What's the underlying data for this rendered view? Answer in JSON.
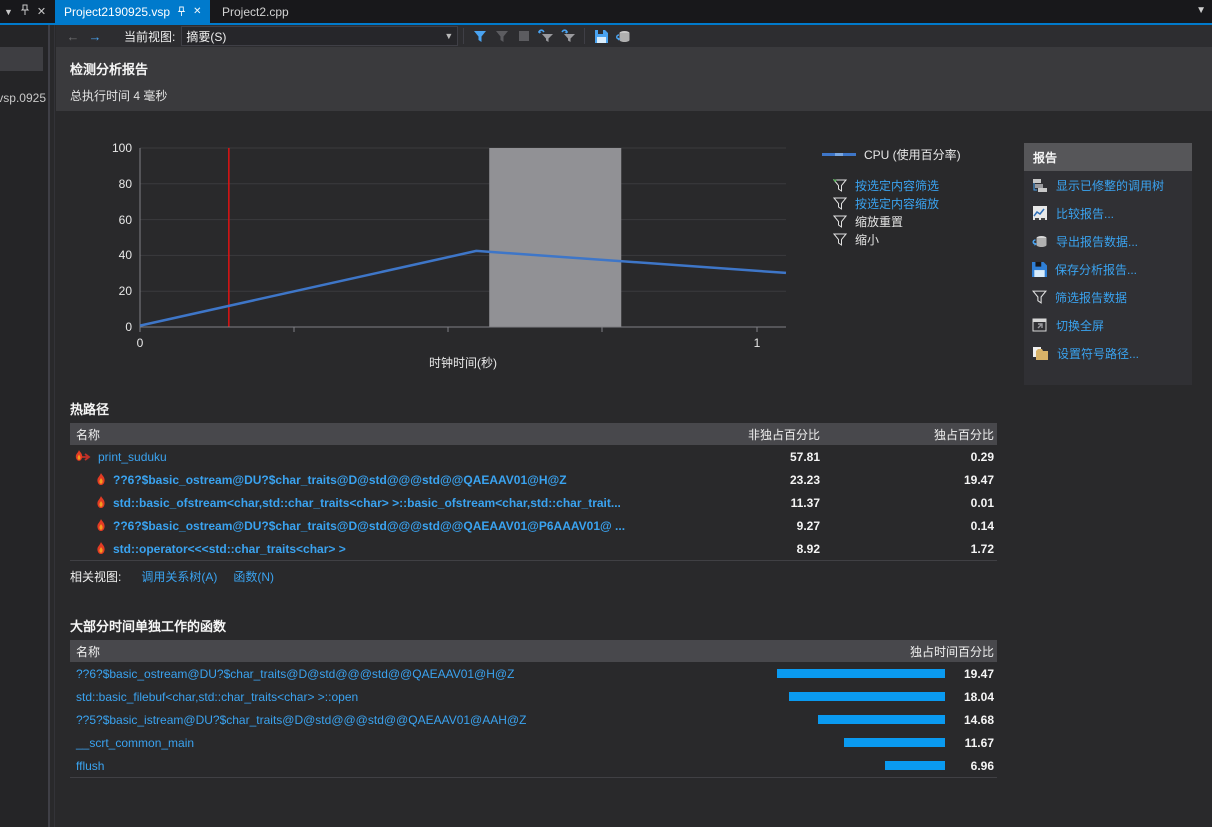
{
  "tabs": {
    "items": [
      {
        "label": "Project2190925.vsp",
        "active": true
      },
      {
        "label": "Project2.cpp",
        "active": false
      }
    ]
  },
  "left_rail": {
    "partial_text": "0925.vsp"
  },
  "toolbar": {
    "current_view_label": "当前视图:",
    "view_value": "摘要(S)"
  },
  "report_header": {
    "title": "检测分析报告",
    "subtitle": "总执行时间 4 毫秒"
  },
  "chart_data": {
    "type": "line",
    "series": [
      {
        "name": "CPU (使用百分率)",
        "color": "#3e76c8",
        "points": [
          [
            0,
            0.8
          ],
          [
            0.545,
            42.5
          ],
          [
            1.047,
            30.2
          ]
        ]
      }
    ],
    "xlabel": "时钟时间(秒)",
    "ylim": [
      0,
      100
    ],
    "ytick_labels": [
      "100",
      "80",
      "60",
      "40",
      "20",
      "0"
    ],
    "xtick_labels": [
      "0",
      "1"
    ],
    "marker_t": 0.144,
    "selection_t": [
      0.566,
      0.78
    ],
    "grid": true,
    "legend_position": "right"
  },
  "chart_actions": {
    "items": [
      {
        "label": "按选定内容筛选",
        "enabled": true
      },
      {
        "label": "按选定内容缩放",
        "enabled": true
      },
      {
        "label": "缩放重置",
        "enabled": false
      },
      {
        "label": "缩小",
        "enabled": false
      }
    ]
  },
  "report_panel": {
    "title": "报告",
    "items": [
      {
        "icon": "trimmed-call-tree-icon",
        "label": "显示已修整的调用树"
      },
      {
        "icon": "compare-reports-icon",
        "label": "比较报告..."
      },
      {
        "icon": "export-report-data-icon",
        "label": "导出报告数据..."
      },
      {
        "icon": "save-analyzed-report-icon",
        "label": "保存分析报告..."
      },
      {
        "icon": "filter-report-data-icon",
        "label": "筛选报告数据"
      },
      {
        "icon": "toggle-fullscreen-icon",
        "label": "切换全屏"
      },
      {
        "icon": "symbol-path-icon",
        "label": "设置符号路径..."
      }
    ]
  },
  "hot_path": {
    "title": "热路径",
    "columns": {
      "name": "名称",
      "inclusive": "非独占百分比",
      "exclusive": "独占百分比"
    },
    "rows": [
      {
        "name": "print_suduku",
        "inclusive": "57.81",
        "exclusive": "0.29"
      },
      {
        "name": "??6?$basic_ostream@DU?$char_traits@D@std@@@std@@QAEAAV01@H@Z",
        "inclusive": "23.23",
        "exclusive": "19.47"
      },
      {
        "name": "std::basic_ofstream<char,std::char_traits<char> >::basic_ofstream<char,std::char_trait...",
        "inclusive": "11.37",
        "exclusive": "0.01"
      },
      {
        "name": "??6?$basic_ostream@DU?$char_traits@D@std@@@std@@QAEAAV01@P6AAAV01@ ...",
        "inclusive": "9.27",
        "exclusive": "0.14"
      },
      {
        "name": "std::operator<<<std::char_traits<char> >",
        "inclusive": "8.92",
        "exclusive": "1.72"
      }
    ],
    "related_label": "相关视图:",
    "related_links": [
      "调用关系树(A)",
      "函数(N)"
    ]
  },
  "exclusive_functions": {
    "title": "大部分时间单独工作的函数",
    "columns": {
      "name": "名称",
      "percent": "独占时间百分比"
    },
    "max_value": 19.47,
    "rows": [
      {
        "name": "??6?$basic_ostream@DU?$char_traits@D@std@@@std@@QAEAAV01@H@Z",
        "value": 19.47
      },
      {
        "name": "std::basic_filebuf<char,std::char_traits<char> >::open",
        "value": 18.04
      },
      {
        "name": "??5?$basic_istream@DU?$char_traits@D@std@@@std@@QAEAAV01@AAH@Z",
        "value": 14.68
      },
      {
        "name": "__scrt_common_main",
        "value": 11.67
      },
      {
        "name": "fflush",
        "value": 6.96
      }
    ]
  },
  "colors": {
    "accent": "#007acc",
    "link": "#3aa3f0",
    "bar": "#0a9af0",
    "line": "#3e76c8",
    "marker": "#e01212",
    "selection": "#919195",
    "flame": "#e23b24"
  }
}
